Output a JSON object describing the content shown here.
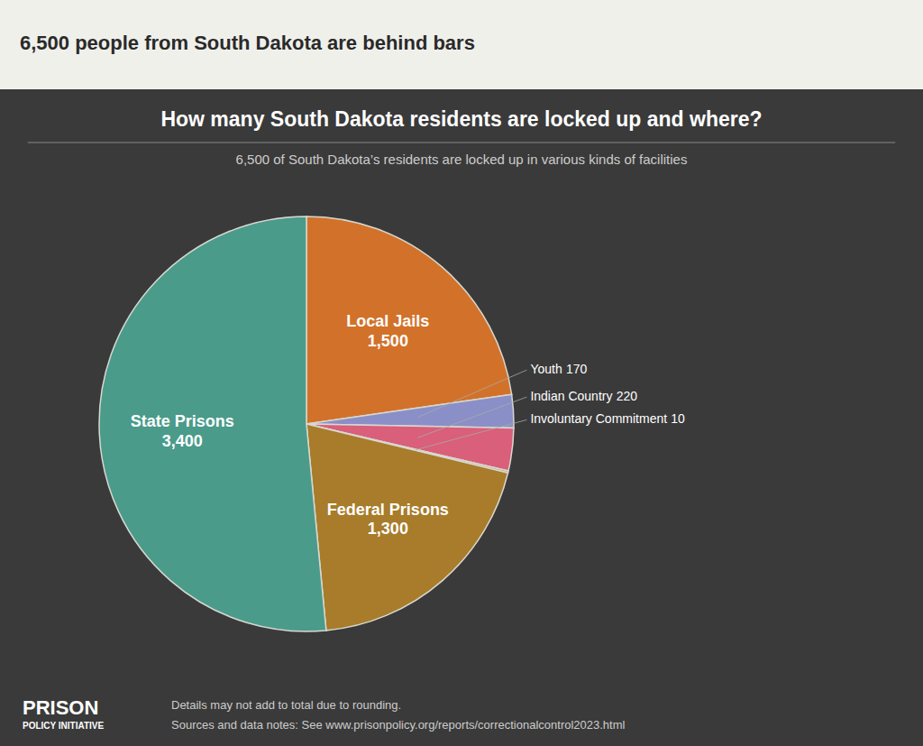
{
  "chart_data": {
    "type": "pie",
    "title": "How many South Dakota residents are locked up and where?",
    "subtitle": "6,500 of South Dakota’s residents are locked up in various kinds of facilities",
    "annotations": [
      "6,500 people from South Dakota are behind bars",
      "Details may not add to total due to rounding.",
      "Sources and data notes: See www.prisonpolicy.org/reports/correctionalcontrol2023.html",
      "PRISON",
      "POLICY INITIATIVE"
    ],
    "categories": [
      "Local Jails",
      "Youth",
      "Indian Country",
      "Involuntary Commitment",
      "Federal Prisons",
      "State Prisons"
    ],
    "values": [
      1500,
      170,
      220,
      10,
      1300,
      3400
    ],
    "value_labels": [
      "1,500",
      "170",
      "220",
      "10",
      "1,300",
      "3,400"
    ],
    "colors": [
      "#D2722A",
      "#8B8FC7",
      "#D95F7A",
      "#C8A97A",
      "#A87C2A",
      "#4A9B8A"
    ],
    "data_labels": true
  }
}
